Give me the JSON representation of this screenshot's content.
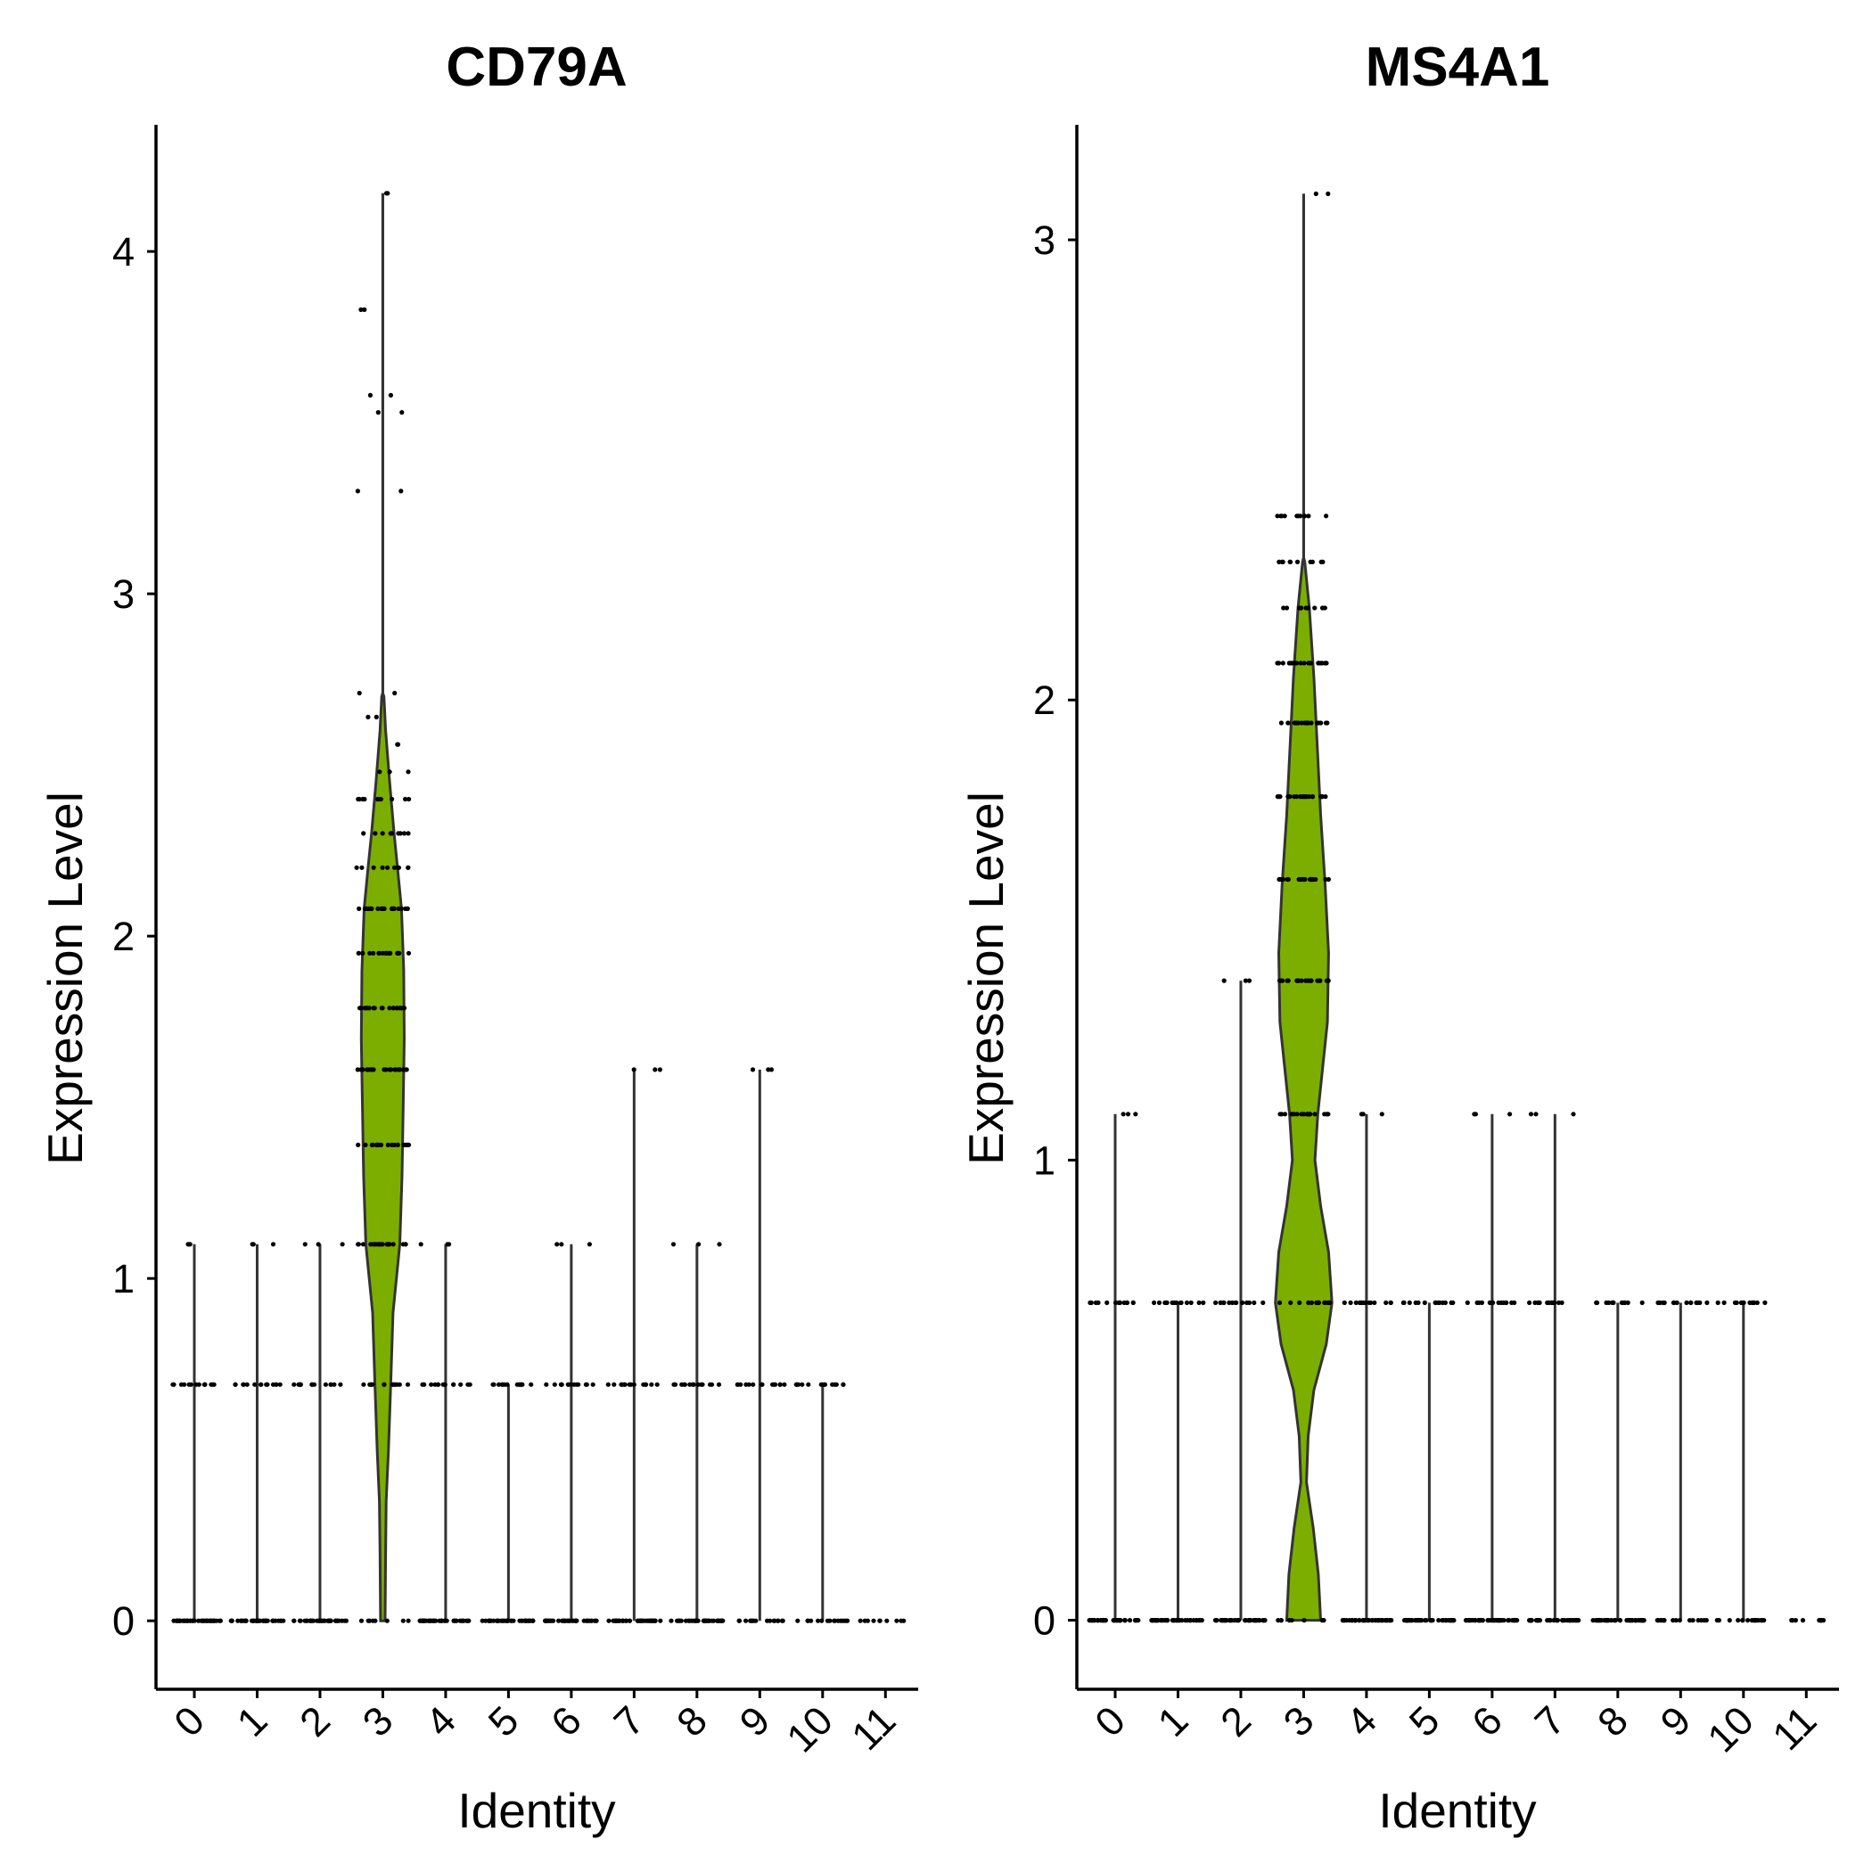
{
  "chart_data": [
    {
      "type": "violin",
      "title": "CD79A",
      "xlabel": "Identity",
      "ylabel": "Expression Level",
      "categories": [
        "0",
        "1",
        "2",
        "3",
        "4",
        "5",
        "6",
        "7",
        "8",
        "9",
        "10",
        "11"
      ],
      "yticks": [
        0,
        1,
        2,
        3,
        4
      ],
      "ylim": [
        -0.2,
        4.37
      ],
      "series_color": "#7cae00",
      "max_values": [
        1.1,
        1.1,
        1.1,
        4.17,
        1.1,
        0.69,
        1.1,
        1.61,
        1.1,
        1.61,
        0.69,
        0.0
      ],
      "point_levels": [
        [
          0,
          0.69,
          1.1
        ],
        [
          0,
          0.69,
          1.1
        ],
        [
          0,
          0.69,
          1.1
        ],
        [
          0,
          0.69,
          1.1,
          1.39,
          1.61,
          1.79,
          1.95,
          2.08,
          2.2,
          2.3,
          2.4,
          2.48,
          2.56,
          2.64,
          2.71,
          3.3,
          3.53,
          3.58,
          3.83,
          4.17
        ],
        [
          0,
          0.69,
          1.1
        ],
        [
          0,
          0.69
        ],
        [
          0,
          0.69,
          1.1
        ],
        [
          0,
          0.69,
          1.61
        ],
        [
          0,
          0.69,
          1.1
        ],
        [
          0,
          0.69,
          1.61
        ],
        [
          0,
          0.69
        ],
        [
          0
        ]
      ],
      "highlight_category": "3",
      "highlight_density": [
        [
          0.0,
          0.04
        ],
        [
          0.2,
          0.05
        ],
        [
          0.35,
          0.06
        ],
        [
          0.5,
          0.1
        ],
        [
          0.69,
          0.14
        ],
        [
          0.9,
          0.18
        ],
        [
          1.1,
          0.3
        ],
        [
          1.3,
          0.34
        ],
        [
          1.5,
          0.36
        ],
        [
          1.7,
          0.38
        ],
        [
          1.9,
          0.37
        ],
        [
          2.08,
          0.33
        ],
        [
          2.2,
          0.26
        ],
        [
          2.3,
          0.2
        ],
        [
          2.45,
          0.12
        ],
        [
          2.6,
          0.05
        ],
        [
          2.7,
          0.02
        ],
        [
          2.71,
          0.0
        ]
      ]
    },
    {
      "type": "violin",
      "title": "MS4A1",
      "xlabel": "Identity",
      "ylabel": "Expression Level",
      "categories": [
        "0",
        "1",
        "2",
        "3",
        "4",
        "5",
        "6",
        "7",
        "8",
        "9",
        "10",
        "11"
      ],
      "yticks": [
        0,
        1,
        2,
        3
      ],
      "ylim": [
        -0.15,
        3.25
      ],
      "series_color": "#7cae00",
      "max_values": [
        1.1,
        0.69,
        1.39,
        3.1,
        1.1,
        0.69,
        1.1,
        1.1,
        0.69,
        0.69,
        0.69,
        0.0
      ],
      "point_levels": [
        [
          0,
          0.69,
          1.1
        ],
        [
          0,
          0.69
        ],
        [
          0,
          0.69,
          1.39
        ],
        [
          0,
          0.69,
          1.1,
          1.39,
          1.61,
          1.79,
          1.95,
          2.08,
          2.2,
          2.3,
          2.4,
          3.1
        ],
        [
          0,
          0.69,
          1.1
        ],
        [
          0,
          0.69
        ],
        [
          0,
          0.69,
          1.1
        ],
        [
          0,
          0.69,
          1.1
        ],
        [
          0,
          0.69
        ],
        [
          0,
          0.69
        ],
        [
          0,
          0.69
        ],
        [
          0
        ]
      ],
      "highlight_category": "3",
      "highlight_density": [
        [
          0.0,
          0.3
        ],
        [
          0.1,
          0.26
        ],
        [
          0.2,
          0.17
        ],
        [
          0.3,
          0.05
        ],
        [
          0.4,
          0.08
        ],
        [
          0.5,
          0.18
        ],
        [
          0.6,
          0.4
        ],
        [
          0.69,
          0.5
        ],
        [
          0.8,
          0.44
        ],
        [
          0.9,
          0.3
        ],
        [
          1.0,
          0.2
        ],
        [
          1.1,
          0.25
        ],
        [
          1.3,
          0.42
        ],
        [
          1.45,
          0.44
        ],
        [
          1.6,
          0.38
        ],
        [
          1.75,
          0.3
        ],
        [
          1.9,
          0.24
        ],
        [
          2.05,
          0.18
        ],
        [
          2.2,
          0.1
        ],
        [
          2.3,
          0.02
        ],
        [
          2.31,
          0.0
        ]
      ]
    }
  ]
}
